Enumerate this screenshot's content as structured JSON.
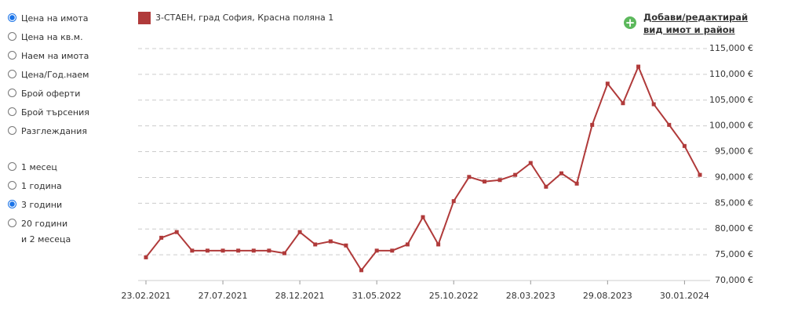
{
  "options": {
    "items": [
      "Цена на имота",
      "Цена на кв.м.",
      "Наем на имота",
      "Цена/Год.наем",
      "Брой оферти",
      "Брой търсения",
      "Разглеждания"
    ],
    "selected": 0
  },
  "periods": {
    "items": [
      "1 месец",
      "1 година",
      "3 години",
      "20 години\nи 2 месеца"
    ],
    "selected": 2
  },
  "link": {
    "line1": "Добави/редактирай",
    "line2": "вид имот и район"
  },
  "chart_data": {
    "type": "line",
    "categories": [
      "23.02.2021",
      null,
      null,
      null,
      null,
      "27.07.2021",
      null,
      null,
      null,
      null,
      "28.12.2021",
      null,
      null,
      null,
      null,
      "31.05.2022",
      null,
      null,
      null,
      null,
      "25.10.2022",
      null,
      null,
      null,
      null,
      "28.03.2023",
      null,
      null,
      null,
      null,
      "29.08.2023",
      null,
      null,
      null,
      null,
      "30.01.2024",
      null
    ],
    "series": [
      {
        "name": "3-СТАЕН, град София, Красна поляна 1",
        "color": "#b03a3a",
        "values": [
          74500,
          78300,
          79400,
          75800,
          75800,
          75800,
          75800,
          75800,
          75800,
          75300,
          79400,
          77000,
          77600,
          76800,
          72000,
          75800,
          75800,
          77000,
          82300,
          77000,
          85400,
          90100,
          89200,
          89500,
          90500,
          92800,
          88200,
          90800,
          88800,
          100200,
          108200,
          104400,
          111500,
          104200,
          100200,
          96100,
          90500
        ]
      }
    ],
    "ylim": [
      70000,
      115000
    ],
    "yticks": [
      {
        "value": 70000,
        "label": "70,000 €"
      },
      {
        "value": 75000,
        "label": "75,000 €"
      },
      {
        "value": 80000,
        "label": "80,000 €"
      },
      {
        "value": 85000,
        "label": "85,000 €"
      },
      {
        "value": 90000,
        "label": "90,000 €"
      },
      {
        "value": 95000,
        "label": "95,000 €"
      },
      {
        "value": 100000,
        "label": "100,000 €"
      },
      {
        "value": 105000,
        "label": "105,000 €"
      },
      {
        "value": 110000,
        "label": "110,000 €"
      },
      {
        "value": 115000,
        "label": "115,000 €"
      }
    ],
    "grid": true
  }
}
